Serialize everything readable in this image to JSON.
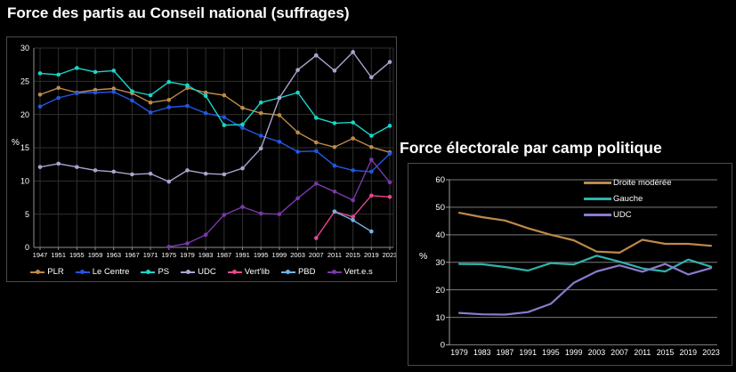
{
  "page": {
    "background": "#000000",
    "text_color": "#ffffff"
  },
  "chart_data": [
    {
      "id": "national-council",
      "type": "line",
      "title": "Force des partis au Conseil national (suffrages)",
      "xlabel": "",
      "ylabel": "%",
      "ylim": [
        0,
        30
      ],
      "yticks": [
        0,
        5,
        10,
        15,
        20,
        25,
        30
      ],
      "grid": "horizontal+vertical",
      "legend_position": "bottom",
      "markers": true,
      "categories": [
        "1947",
        "1951",
        "1955",
        "1959",
        "1963",
        "1967",
        "1971",
        "1975",
        "1979",
        "1983",
        "1987",
        "1991",
        "1995",
        "1999",
        "2003",
        "2007",
        "2011",
        "2015",
        "2019",
        "2023"
      ],
      "series": [
        {
          "name": "PLR",
          "color": "#be8a4a",
          "values": [
            23.0,
            24.0,
            23.3,
            23.7,
            23.9,
            23.2,
            21.8,
            22.2,
            24.0,
            23.3,
            22.9,
            21.0,
            20.2,
            19.9,
            17.3,
            15.8,
            15.1,
            16.4,
            15.1,
            14.3
          ]
        },
        {
          "name": "Le Centre",
          "color": "#2456e0",
          "values": [
            21.2,
            22.5,
            23.2,
            23.3,
            23.4,
            22.1,
            20.3,
            21.1,
            21.3,
            20.2,
            19.6,
            18.0,
            16.8,
            15.9,
            14.4,
            14.5,
            12.3,
            11.6,
            11.4,
            14.1
          ]
        },
        {
          "name": "PS",
          "color": "#1ad6c9",
          "values": [
            26.2,
            26.0,
            27.0,
            26.4,
            26.6,
            23.5,
            22.9,
            24.9,
            24.4,
            22.8,
            18.4,
            18.5,
            21.8,
            22.5,
            23.3,
            19.5,
            18.7,
            18.8,
            16.8,
            18.3
          ]
        },
        {
          "name": "UDC",
          "color": "#aca4ce",
          "values": [
            12.1,
            12.6,
            12.1,
            11.6,
            11.4,
            11.0,
            11.1,
            9.9,
            11.6,
            11.1,
            11.0,
            11.9,
            14.9,
            22.5,
            26.7,
            28.9,
            26.6,
            29.4,
            25.6,
            27.9
          ]
        },
        {
          "name": "Vert'lib",
          "color": "#e84890",
          "values": [
            null,
            null,
            null,
            null,
            null,
            null,
            null,
            null,
            null,
            null,
            null,
            null,
            null,
            null,
            null,
            1.4,
            5.4,
            4.6,
            7.8,
            7.6
          ]
        },
        {
          "name": "PBD",
          "color": "#70b2e5",
          "values": [
            null,
            null,
            null,
            null,
            null,
            null,
            null,
            null,
            null,
            null,
            null,
            null,
            null,
            null,
            null,
            null,
            5.4,
            4.1,
            2.4,
            null
          ]
        },
        {
          "name": "Vert.e.s",
          "color": "#7a38ac",
          "values": [
            null,
            null,
            null,
            null,
            null,
            null,
            null,
            0.1,
            0.6,
            1.9,
            4.9,
            6.1,
            5.1,
            5.0,
            7.4,
            9.6,
            8.4,
            7.1,
            13.2,
            9.8
          ]
        }
      ]
    },
    {
      "id": "political-camps",
      "type": "line",
      "title": "Force électorale par camp politique",
      "xlabel": "",
      "ylabel": "%",
      "ylim": [
        0,
        60
      ],
      "yticks": [
        0,
        10,
        20,
        30,
        40,
        50,
        60
      ],
      "grid": "horizontal",
      "legend_position": "top-right-inside",
      "markers": false,
      "categories": [
        "1979",
        "1983",
        "1987",
        "1991",
        "1995",
        "1999",
        "2003",
        "2007",
        "2011",
        "2015",
        "2019",
        "2023"
      ],
      "series": [
        {
          "name": "Droite modérée",
          "color": "#be8a4a",
          "values": [
            48.0,
            46.4,
            45.2,
            42.4,
            40.0,
            38.0,
            33.9,
            33.5,
            38.2,
            36.7,
            36.7,
            36.0
          ]
        },
        {
          "name": "Gauche",
          "color": "#2fb2aa",
          "values": [
            29.4,
            29.3,
            28.3,
            27.0,
            29.7,
            29.2,
            32.4,
            30.2,
            27.8,
            26.7,
            31.0,
            28.4
          ]
        },
        {
          "name": "UDC",
          "color": "#8d79ce",
          "values": [
            11.6,
            11.1,
            11.0,
            11.9,
            14.9,
            22.5,
            26.7,
            28.9,
            26.6,
            29.4,
            25.6,
            27.9
          ]
        }
      ]
    }
  ]
}
